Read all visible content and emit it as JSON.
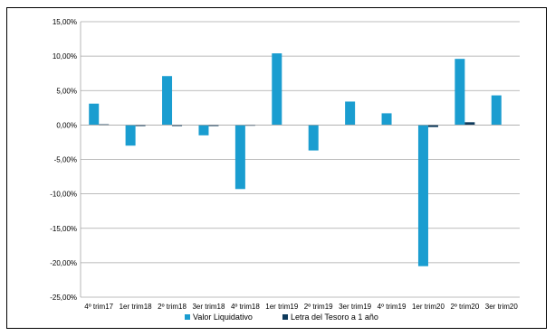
{
  "chart_data": {
    "type": "bar",
    "categories": [
      "4º trim17",
      "1er trim18",
      "2º trim18",
      "3er trim18",
      "4º trim18",
      "1er trim19",
      "2º trim19",
      "3er trim19",
      "4º trim19",
      "1er trim20",
      "2º trim20",
      "3er trim20"
    ],
    "series": [
      {
        "name": "Valor Liquidativo",
        "color": "#1a9dd0",
        "values": [
          3.1,
          -3.0,
          7.1,
          -1.5,
          -9.3,
          10.4,
          -3.7,
          3.4,
          1.7,
          -20.5,
          9.6,
          4.3
        ]
      },
      {
        "name": "Letra del Tesoro a 1 año",
        "color": "#0e3a5c",
        "values": [
          0.1,
          -0.1,
          -0.1,
          -0.1,
          0.05,
          0.0,
          0.0,
          0.0,
          0.0,
          -0.3,
          0.4,
          0.0
        ]
      }
    ],
    "ylim": [
      -25,
      15
    ],
    "yticks": [
      15,
      10,
      5,
      0,
      -5,
      -10,
      -15,
      -20,
      -25
    ],
    "ytick_labels": [
      "15,00%",
      "10,00%",
      "5,00%",
      "0,00%",
      "-5,00%",
      "-10,00%",
      "-15,00%",
      "-20,00%",
      "-25,00%"
    ],
    "grid": true,
    "legend_position": "bottom"
  }
}
